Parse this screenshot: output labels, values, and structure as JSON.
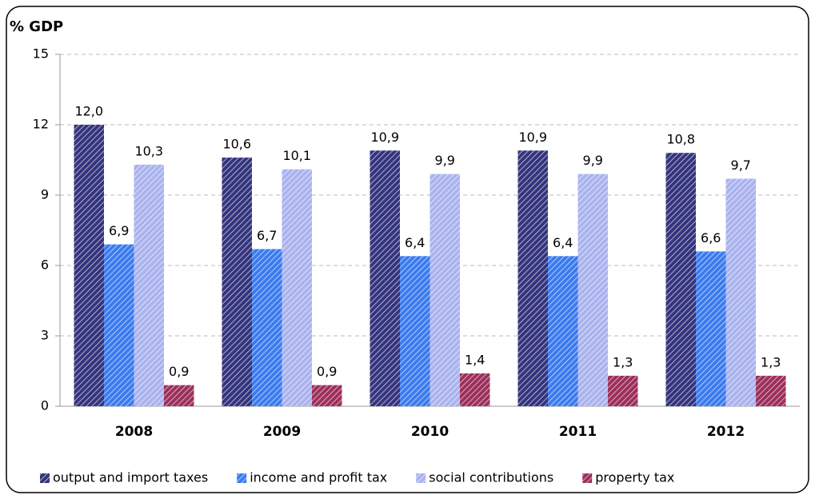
{
  "chart_data": {
    "type": "bar",
    "y_axis_title": "% GDP",
    "categories": [
      "2008",
      "2009",
      "2010",
      "2011",
      "2012"
    ],
    "series": [
      {
        "name": "output and import taxes",
        "color": "#34347e",
        "values": [
          12.0,
          10.6,
          10.9,
          10.9,
          10.8
        ],
        "value_labels": [
          "12,0",
          "10,6",
          "10,9",
          "10,9",
          "10,8"
        ]
      },
      {
        "name": "income and profit tax",
        "color": "#3b7bee",
        "values": [
          6.9,
          6.7,
          6.4,
          6.4,
          6.6
        ],
        "value_labels": [
          "6,9",
          "6,7",
          "6,4",
          "6,4",
          "6,6"
        ]
      },
      {
        "name": "social contributions",
        "color": "#aab3ee",
        "values": [
          10.3,
          10.1,
          9.9,
          9.9,
          9.7
        ],
        "value_labels": [
          "10,3",
          "10,1",
          "9,9",
          "9,9",
          "9,7"
        ]
      },
      {
        "name": "property tax",
        "color": "#9c2f5c",
        "values": [
          0.9,
          0.9,
          1.4,
          1.3,
          1.3
        ],
        "value_labels": [
          "0,9",
          "0,9",
          "1,4",
          "1,3",
          "1,3"
        ]
      }
    ],
    "ylim": [
      0,
      15
    ],
    "yticks": [
      0,
      3,
      6,
      9,
      12,
      15
    ],
    "grid": true,
    "legend": "bottom"
  }
}
